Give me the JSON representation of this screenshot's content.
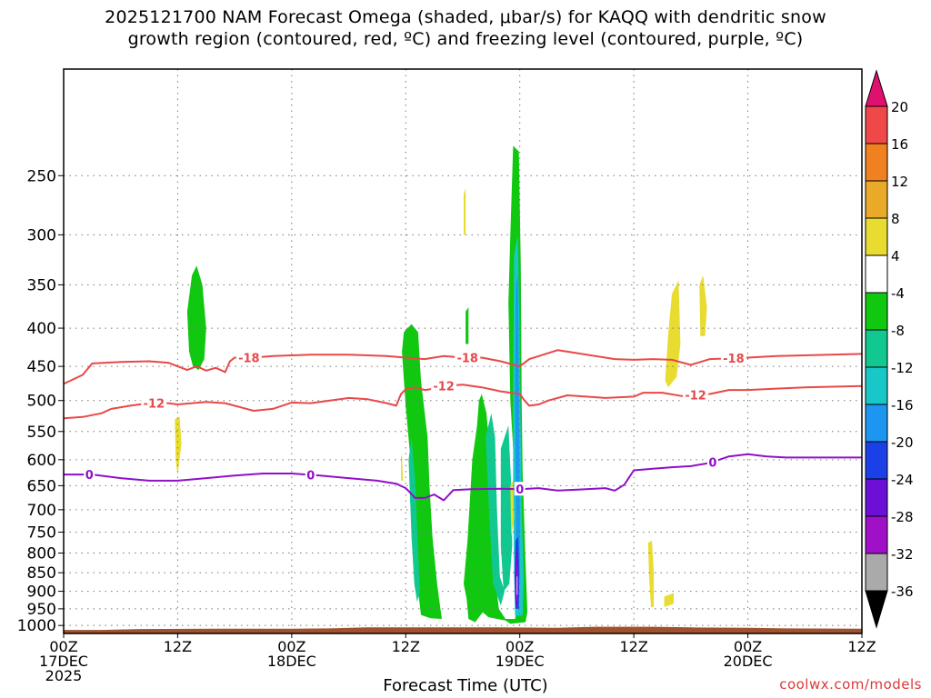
{
  "title": {
    "line1": "2025121700 NAM Forecast Omega (shaded, μbar/s) for KAQQ with dendritic snow",
    "line2": "growth region (contoured, red, ºC) and freezing level (contoured, purple, ºC)"
  },
  "credit": "coolwx.com/models",
  "chart_data": {
    "type": "time-height",
    "xlabel": "Forecast Time (UTC)",
    "ylabel": "",
    "x_unit": "forecast hour",
    "xlim": [
      0,
      84
    ],
    "ylim": [
      1025,
      180
    ],
    "y_scale": "log-pressure (hPa)",
    "y_ticks": [
      250,
      300,
      350,
      400,
      450,
      500,
      550,
      600,
      650,
      700,
      750,
      800,
      850,
      900,
      950,
      1000
    ],
    "x_ticks": [
      {
        "h": 0,
        "lines": [
          "00Z",
          "17DEC",
          "2025"
        ]
      },
      {
        "h": 12,
        "lines": [
          "12Z"
        ]
      },
      {
        "h": 24,
        "lines": [
          "00Z",
          "18DEC"
        ]
      },
      {
        "h": 36,
        "lines": [
          "12Z"
        ]
      },
      {
        "h": 48,
        "lines": [
          "00Z",
          "19DEC"
        ]
      },
      {
        "h": 60,
        "lines": [
          "12Z"
        ]
      },
      {
        "h": 72,
        "lines": [
          "00Z",
          "20DEC"
        ]
      },
      {
        "h": 84,
        "lines": [
          "12Z"
        ]
      }
    ],
    "colorbar": {
      "labels": [
        "20",
        "16",
        "12",
        "8",
        "4",
        "-4",
        "-8",
        "-12",
        "-16",
        "-20",
        "-24",
        "-28",
        "-32",
        "-36"
      ],
      "colors": {
        "over": "#e0106e",
        "16_20": "#f04848",
        "12_16": "#f08020",
        "8_12": "#e8aa28",
        "4_8": "#e8dc30",
        "neutral": "#ffffff",
        "m8_m4": "#10c810",
        "m12_m8": "#10c890",
        "m16_m12": "#18c8c8",
        "m20_m16": "#1c96f0",
        "m24_m20": "#1c40e8",
        "m28_m24": "#6c10d8",
        "m32_m28": "#a010c8",
        "m36_m32": "#aaaaaa",
        "under": "#000000"
      }
    },
    "contours": [
      {
        "name": "-18 C isotherm",
        "label": "-18",
        "color": "#e84848",
        "points": [
          [
            0,
            475
          ],
          [
            2,
            462
          ],
          [
            3,
            446
          ],
          [
            6,
            444
          ],
          [
            9,
            443
          ],
          [
            11,
            445
          ],
          [
            12,
            450
          ],
          [
            13,
            455
          ],
          [
            14,
            450
          ],
          [
            15,
            456
          ],
          [
            16,
            452
          ],
          [
            17,
            458
          ],
          [
            17.5,
            443
          ],
          [
            18,
            438
          ],
          [
            20,
            438
          ],
          [
            22,
            436
          ],
          [
            26,
            434
          ],
          [
            30,
            434
          ],
          [
            34,
            436
          ],
          [
            36,
            438
          ],
          [
            38,
            440
          ],
          [
            40,
            436
          ],
          [
            42,
            438
          ],
          [
            44,
            438
          ],
          [
            46,
            443
          ],
          [
            48,
            450
          ],
          [
            49,
            440
          ],
          [
            50,
            436
          ],
          [
            52,
            428
          ],
          [
            54,
            432
          ],
          [
            58,
            440
          ],
          [
            60,
            441
          ],
          [
            62,
            440
          ],
          [
            64,
            441
          ],
          [
            66,
            448
          ],
          [
            68,
            440
          ],
          [
            72,
            438
          ],
          [
            75,
            436
          ],
          [
            78,
            435
          ],
          [
            84,
            433
          ]
        ],
        "label_positions": [
          19.5,
          42.5,
          70.5
        ]
      },
      {
        "name": "-12 C isotherm",
        "label": "-12",
        "color": "#e84848",
        "points": [
          [
            0,
            528
          ],
          [
            2,
            526
          ],
          [
            4,
            520
          ],
          [
            5,
            513
          ],
          [
            7,
            508
          ],
          [
            9,
            504
          ],
          [
            11,
            504
          ],
          [
            12,
            506
          ],
          [
            15,
            502
          ],
          [
            17,
            504
          ],
          [
            19,
            512
          ],
          [
            20,
            516
          ],
          [
            22,
            513
          ],
          [
            24,
            503
          ],
          [
            26,
            504
          ],
          [
            28,
            500
          ],
          [
            30,
            496
          ],
          [
            32,
            498
          ],
          [
            34,
            504
          ],
          [
            35,
            508
          ],
          [
            35.5,
            490
          ],
          [
            36,
            483
          ],
          [
            37,
            480
          ],
          [
            38,
            484
          ],
          [
            39,
            482
          ],
          [
            40,
            478
          ],
          [
            42,
            476
          ],
          [
            44,
            480
          ],
          [
            46,
            486
          ],
          [
            48,
            490
          ],
          [
            48.5,
            500
          ],
          [
            49,
            508
          ],
          [
            50,
            506
          ],
          [
            51,
            500
          ],
          [
            53,
            492
          ],
          [
            55,
            494
          ],
          [
            57,
            496
          ],
          [
            60,
            494
          ],
          [
            61,
            488
          ],
          [
            63,
            488
          ],
          [
            65,
            493
          ],
          [
            68,
            490
          ],
          [
            70,
            484
          ],
          [
            72,
            484
          ],
          [
            75,
            482
          ],
          [
            78,
            480
          ],
          [
            84,
            478
          ]
        ],
        "label_positions": [
          9.5,
          40.0,
          66.5
        ]
      },
      {
        "name": "0 C isotherm (freezing level)",
        "label": "0",
        "color": "#9010c8",
        "points": [
          [
            0,
            628
          ],
          [
            3,
            628
          ],
          [
            6,
            635
          ],
          [
            9,
            640
          ],
          [
            12,
            640
          ],
          [
            15,
            635
          ],
          [
            18,
            630
          ],
          [
            21,
            626
          ],
          [
            24,
            626
          ],
          [
            27,
            630
          ],
          [
            30,
            635
          ],
          [
            33,
            640
          ],
          [
            35,
            646
          ],
          [
            36,
            655
          ],
          [
            37,
            675
          ],
          [
            38,
            675
          ],
          [
            39,
            668
          ],
          [
            40,
            680
          ],
          [
            41,
            659
          ],
          [
            43,
            657
          ],
          [
            46,
            656
          ],
          [
            48,
            657
          ],
          [
            50,
            655
          ],
          [
            52,
            660
          ],
          [
            54,
            658
          ],
          [
            57,
            655
          ],
          [
            58,
            660
          ],
          [
            59,
            648
          ],
          [
            60,
            620
          ],
          [
            62,
            617
          ],
          [
            64,
            614
          ],
          [
            66,
            612
          ],
          [
            68,
            606
          ],
          [
            70,
            594
          ],
          [
            72,
            590
          ],
          [
            74,
            594
          ],
          [
            76,
            596
          ],
          [
            78,
            596
          ],
          [
            80,
            596
          ],
          [
            84,
            596
          ]
        ],
        "label_positions": [
          2.7,
          26.0,
          48.0,
          68.3
        ]
      }
    ],
    "shaded_regions": [
      {
        "name": "upward-motion band (-4 to -8)",
        "color": "green",
        "outline": [
          [
            35.8,
            405
          ],
          [
            36.6,
            395
          ],
          [
            37.3,
            405
          ],
          [
            37.6,
            470
          ],
          [
            38,
            520
          ],
          [
            38.3,
            560
          ],
          [
            38.5,
            650
          ],
          [
            38.8,
            760
          ],
          [
            39.3,
            880
          ],
          [
            39.6,
            940
          ],
          [
            39.8,
            980
          ],
          [
            38.6,
            978
          ],
          [
            37.6,
            968
          ],
          [
            37.4,
            920
          ],
          [
            37.0,
            820
          ],
          [
            36.7,
            700
          ],
          [
            36.5,
            600
          ],
          [
            36.0,
            510
          ],
          [
            35.6,
            430
          ]
        ]
      },
      {
        "name": "upward-motion band (-4 to -8)",
        "color": "green",
        "outline": [
          [
            42.5,
            770
          ],
          [
            43.0,
            600
          ],
          [
            43.5,
            540
          ],
          [
            43.7,
            500
          ],
          [
            44.0,
            490
          ],
          [
            44.5,
            520
          ],
          [
            45.0,
            620
          ],
          [
            45.5,
            880
          ],
          [
            45.8,
            950
          ],
          [
            46.5,
            980
          ],
          [
            47.5,
            980
          ],
          [
            48.0,
            900
          ],
          [
            47.5,
            640
          ],
          [
            47.0,
            500
          ],
          [
            46.8,
            370
          ],
          [
            47.0,
            300
          ],
          [
            47.3,
            228
          ],
          [
            47.9,
            232
          ],
          [
            48.1,
            330
          ],
          [
            48.2,
            500
          ],
          [
            48.3,
            620
          ],
          [
            48.6,
            820
          ],
          [
            48.8,
            960
          ],
          [
            48.6,
            990
          ],
          [
            47.0,
            995
          ],
          [
            46.5,
            985
          ],
          [
            44.7,
            975
          ],
          [
            44.1,
            960
          ],
          [
            43.3,
            990
          ],
          [
            42.6,
            980
          ],
          [
            42.4,
            920
          ],
          [
            42.1,
            880
          ]
        ]
      },
      {
        "name": "downward-motion patch (4 to 8)",
        "color": "yellow",
        "outline": [
          [
            63.3,
            470
          ],
          [
            63.6,
            410
          ],
          [
            64.0,
            360
          ],
          [
            64.7,
            345
          ],
          [
            64.9,
            420
          ],
          [
            64.5,
            465
          ],
          [
            63.6,
            480
          ]
        ]
      }
    ],
    "terrain_color": "#a0522d"
  }
}
